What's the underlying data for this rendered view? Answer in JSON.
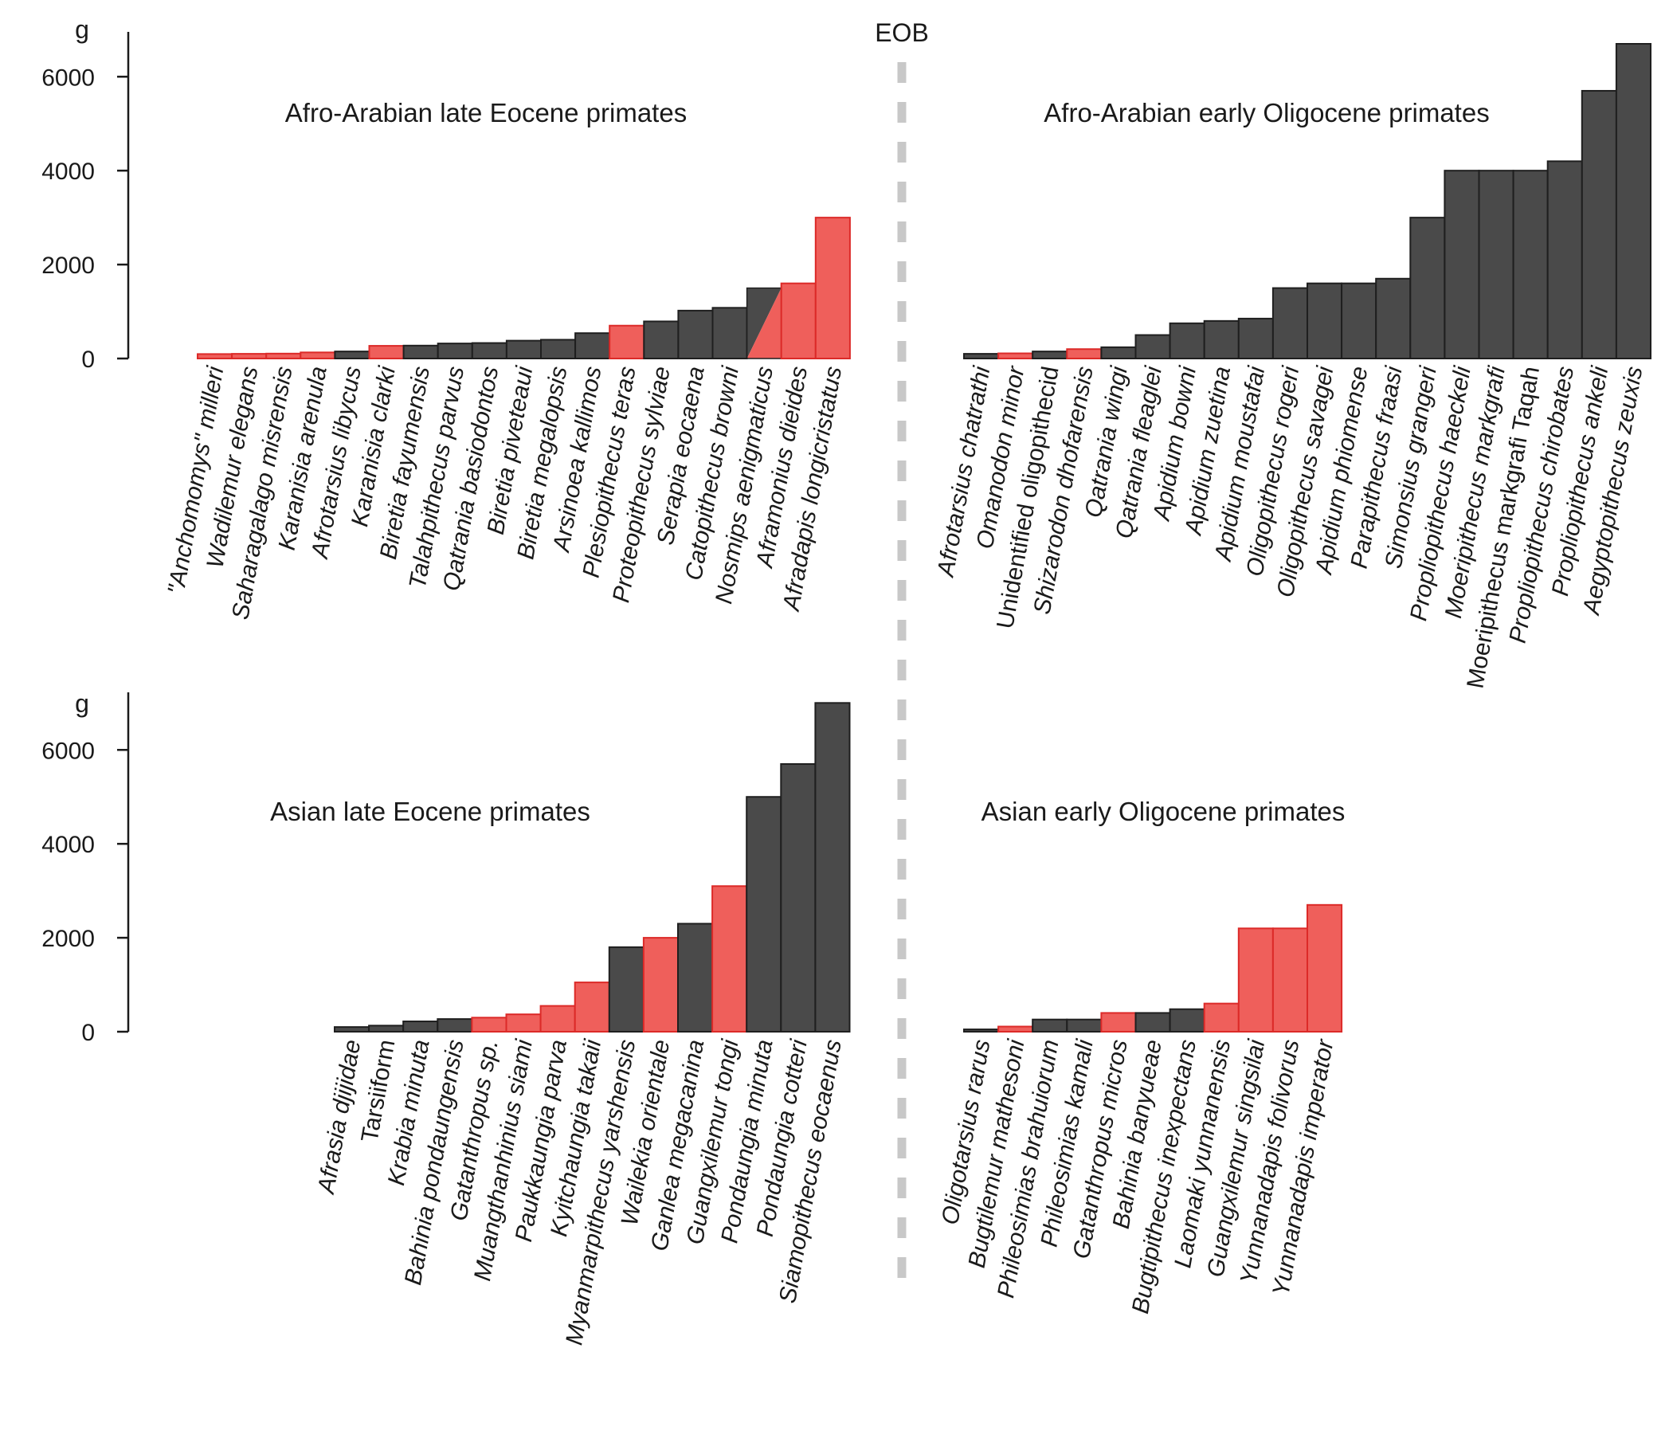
{
  "figure": {
    "boundary_label": "EOB",
    "colors": {
      "dark_bar": "#4a4a4a",
      "dark_edge": "#1f1f1f",
      "red_bar": "#ef5f5b",
      "red_edge": "#dc2a28",
      "boundary_line": "#c8c8c8",
      "axis": "#1a1a1a"
    }
  },
  "chart_data": [
    {
      "type": "bar",
      "title": "Afro-Arabian late Eocene primates",
      "ylabel": "g",
      "ylim": [
        0,
        7000
      ],
      "yticks": [
        0,
        2000,
        4000,
        6000
      ],
      "categories": [
        "\"Anchomomys\" milleri",
        "Wadilemur elegans",
        "Saharagalago misrensis",
        "Karanisia arenula",
        "Afrotarsius libycus",
        "Karanisia clarki",
        "Biretia fayumensis",
        "Talahpithecus parvus",
        "Qatrania basiodontos",
        "Biretia piveteaui",
        "Biretia megalopsis",
        "Arsinoea kallimos",
        "Plesiopithecus teras",
        "Proteopithecus sylviae",
        "Serapia eocaena",
        "Catopithecus browni",
        "Nosmips aenigmaticus",
        "Aframonius dieides",
        "Afradapis longicristatus"
      ],
      "values": [
        95,
        100,
        105,
        130,
        150,
        270,
        275,
        320,
        330,
        380,
        400,
        540,
        700,
        790,
        1020,
        1080,
        1500,
        1600,
        3000
      ],
      "colors": [
        "red",
        "red",
        "red",
        "red",
        "dark",
        "red",
        "dark",
        "dark",
        "dark",
        "dark",
        "dark",
        "dark",
        "red",
        "dark",
        "dark",
        "dark",
        "split",
        "red",
        "red"
      ],
      "upright_labels": []
    },
    {
      "type": "bar",
      "title": "Afro-Arabian early Oligocene primates",
      "ylabel": "",
      "ylim": [
        0,
        7000
      ],
      "categories": [
        "Afrotarsius chatrathi",
        "Omanodon minor",
        "Unidentified oligopithecid",
        "Shizarodon dhofarensis",
        "Qatrania wingi",
        "Qatrania fleaglei",
        "Apidium bowni",
        "Apidium zuetina",
        "Apidium moustafai",
        "Oligopithecus rogeri",
        "Oligopithecus savagei",
        "Apidium phiomense",
        "Parapithecus fraasi",
        "Simonsius grangeri",
        "Propliopithecus haeckeli",
        "Moeripithecus markgrafi",
        "Moeripithecus markgrafi Taqah",
        "Propliopithecus chirobates",
        "Propliopithecus ankeli",
        "Aegyptopithecus zeuxis"
      ],
      "values": [
        100,
        110,
        150,
        200,
        240,
        500,
        750,
        800,
        850,
        1500,
        1600,
        1600,
        1700,
        3000,
        4000,
        4000,
        4000,
        4200,
        5700,
        6700
      ],
      "colors": [
        "dark",
        "red",
        "dark",
        "red",
        "dark",
        "dark",
        "dark",
        "dark",
        "dark",
        "dark",
        "dark",
        "dark",
        "dark",
        "dark",
        "dark",
        "dark",
        "dark",
        "dark",
        "dark",
        "dark"
      ],
      "upright_labels": [
        2,
        16
      ]
    },
    {
      "type": "bar",
      "title": "Asian late Eocene primates",
      "ylabel": "g",
      "ylim": [
        0,
        7000
      ],
      "yticks": [
        0,
        2000,
        4000,
        6000
      ],
      "categories": [
        "Afrasia djijidae",
        "Tarsiiform",
        "Krabia minuta",
        "Bahinia pondaungensis",
        "Gatanthropus sp.",
        "Muangthanhinius siami",
        "Paukkaungia parva",
        "Kyitchaungia takaii",
        "Myanmarpithecus yarshensis",
        "Wailekia orientale",
        "Ganlea megacanina",
        "Guangxilemur tongi",
        "Pondaungia minuta",
        "Pondaungia cotteri",
        "Siamopithecus eocaenus"
      ],
      "values": [
        100,
        130,
        220,
        270,
        300,
        370,
        550,
        1050,
        1800,
        2000,
        2300,
        3100,
        5000,
        5700,
        7000
      ],
      "colors": [
        "dark",
        "dark",
        "dark",
        "dark",
        "red",
        "red",
        "red",
        "red",
        "dark",
        "red",
        "dark",
        "red",
        "dark",
        "dark",
        "dark"
      ],
      "upright_labels": [
        1
      ]
    },
    {
      "type": "bar",
      "title": "Asian early Oligocene primates",
      "ylabel": "",
      "ylim": [
        0,
        7000
      ],
      "categories": [
        "Oligotarsius rarus",
        "Bugtilemur mathesoni",
        "Phileosimias brahuiorum",
        "Phileosimias kamali",
        "Gatanthropus micros",
        "Bahinia banyueae",
        "Bugtipithecus inexpectans",
        "Laomaki yunnanensis",
        "Guangxilemur singsilai",
        "Yunnanadapis folivorus",
        "Yunnanadapis imperator"
      ],
      "values": [
        50,
        110,
        260,
        260,
        400,
        400,
        480,
        600,
        2200,
        2200,
        2700
      ],
      "colors": [
        "dark",
        "red",
        "dark",
        "dark",
        "red",
        "dark",
        "dark",
        "red",
        "red",
        "red",
        "red"
      ],
      "upright_labels": []
    }
  ]
}
